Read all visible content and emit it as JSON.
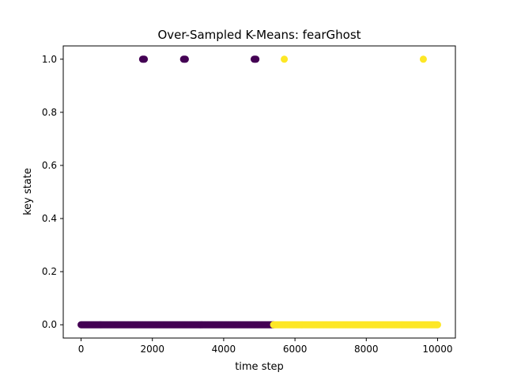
{
  "chart_data": {
    "type": "scatter",
    "title": "Over-Sampled K-Means: fearGhost",
    "xlabel": "time step",
    "ylabel": "key state",
    "xlim": [
      -500,
      10500
    ],
    "ylim": [
      -0.05,
      1.05
    ],
    "xticks": [
      0,
      2000,
      4000,
      6000,
      8000,
      10000
    ],
    "xtick_labels": [
      "0",
      "2000",
      "4000",
      "6000",
      "8000",
      "10000"
    ],
    "yticks": [
      0.0,
      0.2,
      0.4,
      0.6,
      0.8,
      1.0
    ],
    "ytick_labels": [
      "0.0",
      "0.2",
      "0.4",
      "0.6",
      "0.8",
      "1.0"
    ],
    "grid": false,
    "legend": "none",
    "colors": {
      "cluster_0": "#440154",
      "cluster_1": "#fde725"
    },
    "series": [
      {
        "cluster": 0,
        "color": "#440154",
        "x_range_at_y0": [
          0,
          5400
        ],
        "points": [
          {
            "x": 1750,
            "y": 1.0
          },
          {
            "x": 2900,
            "y": 1.0
          },
          {
            "x": 4880,
            "y": 1.0
          }
        ]
      },
      {
        "cluster": 1,
        "color": "#fde725",
        "x_range_at_y0": [
          5400,
          10000
        ],
        "points": [
          {
            "x": 5700,
            "y": 1.0
          },
          {
            "x": 9600,
            "y": 1.0
          }
        ]
      }
    ]
  }
}
